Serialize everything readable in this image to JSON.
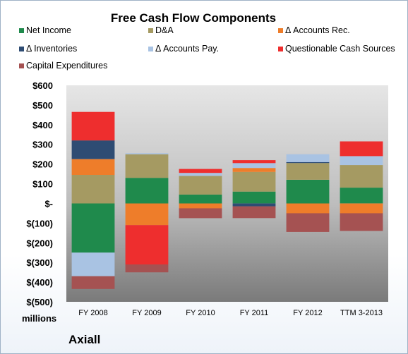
{
  "chart_data": {
    "type": "bar",
    "stacked": true,
    "title": "Free Cash Flow Components",
    "categories": [
      "FY 2008",
      "FY 2009",
      "FY 2010",
      "FY 2011",
      "FY 2012",
      "TTM 3-2013"
    ],
    "series": [
      {
        "name": "Net Income",
        "color": "#1f8a4c",
        "values": [
          -250,
          130,
          45,
          60,
          120,
          80
        ]
      },
      {
        "name": "D&A",
        "color": "#a59a62",
        "values": [
          145,
          120,
          95,
          100,
          85,
          115
        ]
      },
      {
        "name": "Δ Accounts Rec.",
        "color": "#ee7d2a",
        "values": [
          80,
          -110,
          -25,
          20,
          -50,
          -50
        ]
      },
      {
        "name": "Δ Inventories",
        "color": "#2e4c73",
        "values": [
          95,
          0,
          0,
          -15,
          5,
          0
        ]
      },
      {
        "name": "Δ Accounts Pay.",
        "color": "#a9c3e3",
        "values": [
          -120,
          5,
          15,
          25,
          40,
          45
        ]
      },
      {
        "name": "Questionable Cash Sources",
        "color": "#ee2e2e",
        "values": [
          145,
          -200,
          20,
          15,
          0,
          75
        ]
      },
      {
        "name": "Capital Expenditures",
        "color": "#a55252",
        "values": [
          -65,
          -40,
          -50,
          -60,
          -95,
          -90
        ]
      }
    ],
    "ylim": [
      -500,
      600
    ],
    "yticks": [
      600,
      500,
      400,
      300,
      200,
      100,
      0,
      -100,
      -200,
      -300,
      -400,
      -500
    ],
    "ytick_labels": [
      "$600",
      "$500",
      "$400",
      "$300",
      "$200",
      "$100",
      "$-",
      "$(100)",
      "$(200)",
      "$(300)",
      "$(400)",
      "$(500)"
    ],
    "xlabel": "",
    "ylabel": "",
    "grid": false,
    "legend": "top",
    "units_label": "millions",
    "brand": "Axiall"
  }
}
